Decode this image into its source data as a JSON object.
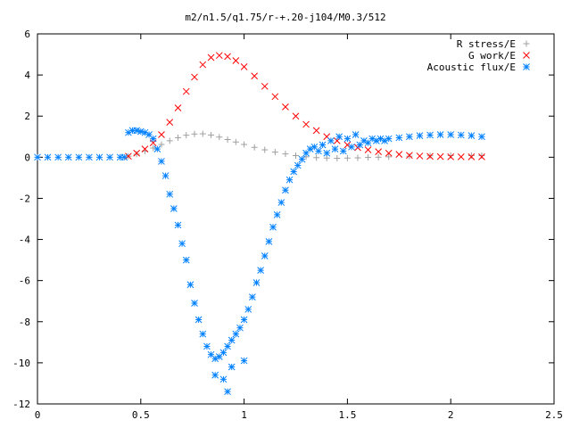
{
  "chart_data": {
    "type": "scatter",
    "title": "m2/n1.5/q1.75/r-+.20-j104/M0.3/512",
    "xlabel": "",
    "ylabel": "",
    "xlim": [
      0,
      2.5
    ],
    "ylim": [
      -12,
      6
    ],
    "xticks": [
      0,
      0.5,
      1,
      1.5,
      2,
      2.5
    ],
    "xtick_labels": [
      "0",
      "0.5",
      "1",
      "1.5",
      "2",
      "2.5"
    ],
    "yticks": [
      -12,
      -10,
      -8,
      -6,
      -4,
      -2,
      0,
      2,
      4,
      6
    ],
    "ytick_labels": [
      "-12",
      "-10",
      "-8",
      "-6",
      "-4",
      "-2",
      "0",
      "2",
      "4",
      "6"
    ],
    "grid": false,
    "legend_position": "top-right",
    "series": [
      {
        "name": "R stress/E",
        "marker": "plus",
        "color": "#a0a0a0",
        "x": [
          0.44,
          0.48,
          0.52,
          0.56,
          0.6,
          0.64,
          0.68,
          0.72,
          0.76,
          0.8,
          0.84,
          0.88,
          0.92,
          0.96,
          1.0,
          1.05,
          1.1,
          1.15,
          1.2,
          1.25,
          1.3,
          1.35,
          1.4,
          1.45,
          1.5,
          1.55,
          1.6,
          1.65,
          1.7,
          1.8,
          1.9,
          2.0,
          2.1,
          2.15
        ],
        "y": [
          0.05,
          0.15,
          0.3,
          0.45,
          0.62,
          0.8,
          0.95,
          1.07,
          1.13,
          1.14,
          1.08,
          0.98,
          0.86,
          0.74,
          0.62,
          0.48,
          0.36,
          0.25,
          0.16,
          0.08,
          0.02,
          -0.02,
          -0.04,
          -0.05,
          -0.04,
          -0.03,
          -0.01,
          0.0,
          0.02,
          0.05,
          0.07,
          0.08,
          0.08,
          0.08
        ]
      },
      {
        "name": "G work/E",
        "marker": "cross",
        "color": "#ff0000",
        "x": [
          0.44,
          0.48,
          0.52,
          0.56,
          0.6,
          0.64,
          0.68,
          0.72,
          0.76,
          0.8,
          0.84,
          0.88,
          0.92,
          0.96,
          1.0,
          1.05,
          1.1,
          1.15,
          1.2,
          1.25,
          1.3,
          1.35,
          1.4,
          1.45,
          1.5,
          1.55,
          1.6,
          1.65,
          1.7,
          1.75,
          1.8,
          1.85,
          1.9,
          1.95,
          2.0,
          2.05,
          2.1,
          2.15
        ],
        "y": [
          0.05,
          0.2,
          0.4,
          0.7,
          1.1,
          1.7,
          2.4,
          3.2,
          3.9,
          4.5,
          4.85,
          4.95,
          4.9,
          4.7,
          4.4,
          3.95,
          3.45,
          2.95,
          2.45,
          2.0,
          1.6,
          1.3,
          1.0,
          0.8,
          0.6,
          0.47,
          0.36,
          0.27,
          0.2,
          0.14,
          0.09,
          0.06,
          0.04,
          0.03,
          0.02,
          0.02,
          0.02,
          0.02
        ]
      },
      {
        "name": "Acoustic flux/E",
        "marker": "star",
        "color": "#0080ff",
        "x": [
          0.0,
          0.05,
          0.1,
          0.15,
          0.2,
          0.25,
          0.3,
          0.35,
          0.4,
          0.42,
          0.44,
          0.46,
          0.48,
          0.5,
          0.52,
          0.54,
          0.56,
          0.58,
          0.6,
          0.62,
          0.64,
          0.66,
          0.68,
          0.7,
          0.72,
          0.74,
          0.76,
          0.78,
          0.8,
          0.82,
          0.84,
          0.86,
          0.88,
          0.9,
          0.92,
          0.94,
          0.96,
          0.98,
          1.0,
          1.02,
          1.04,
          1.06,
          1.08,
          1.1,
          1.12,
          1.14,
          1.16,
          1.18,
          1.2,
          1.22,
          1.24,
          1.26,
          1.28,
          1.3,
          1.32,
          1.34,
          1.36,
          1.38,
          1.4,
          1.42,
          1.44,
          1.46,
          1.48,
          1.5,
          1.52,
          1.54,
          1.56,
          1.58,
          1.6,
          1.62,
          1.64,
          1.66,
          1.68,
          1.7,
          1.75,
          1.8,
          1.85,
          1.9,
          1.95,
          2.0,
          2.05,
          2.1,
          2.15,
          0.86,
          0.92,
          0.94,
          1.0,
          0.9
        ],
        "y": [
          0.0,
          0.0,
          0.0,
          0.0,
          0.0,
          0.0,
          0.0,
          0.0,
          0.0,
          0.0,
          1.2,
          1.3,
          1.3,
          1.25,
          1.2,
          1.1,
          0.9,
          0.4,
          -0.2,
          -0.9,
          -1.8,
          -2.5,
          -3.3,
          -4.2,
          -5.0,
          -6.2,
          -7.1,
          -7.9,
          -8.6,
          -9.2,
          -9.6,
          -9.8,
          -9.7,
          -9.5,
          -9.2,
          -8.9,
          -8.6,
          -8.3,
          -7.9,
          -7.4,
          -6.8,
          -6.1,
          -5.5,
          -4.8,
          -4.1,
          -3.4,
          -2.8,
          -2.2,
          -1.6,
          -1.1,
          -0.7,
          -0.4,
          -0.1,
          0.2,
          0.4,
          0.5,
          0.3,
          0.6,
          0.2,
          0.8,
          0.4,
          1.0,
          0.3,
          0.9,
          0.5,
          1.1,
          0.6,
          0.8,
          0.7,
          0.9,
          0.8,
          0.9,
          0.8,
          0.9,
          0.95,
          1.0,
          1.05,
          1.08,
          1.1,
          1.1,
          1.08,
          1.05,
          1.0,
          -10.6,
          -11.4,
          -10.2,
          -9.9,
          -10.8
        ]
      }
    ]
  }
}
